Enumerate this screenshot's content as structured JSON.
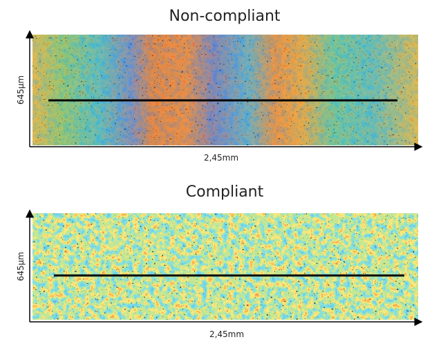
{
  "panels": [
    {
      "title": "Non-compliant",
      "y_label": "645µm",
      "x_label": "2,45mm"
    },
    {
      "title": "Compliant",
      "y_label": "645µm",
      "x_label": "2,45mm"
    }
  ]
}
